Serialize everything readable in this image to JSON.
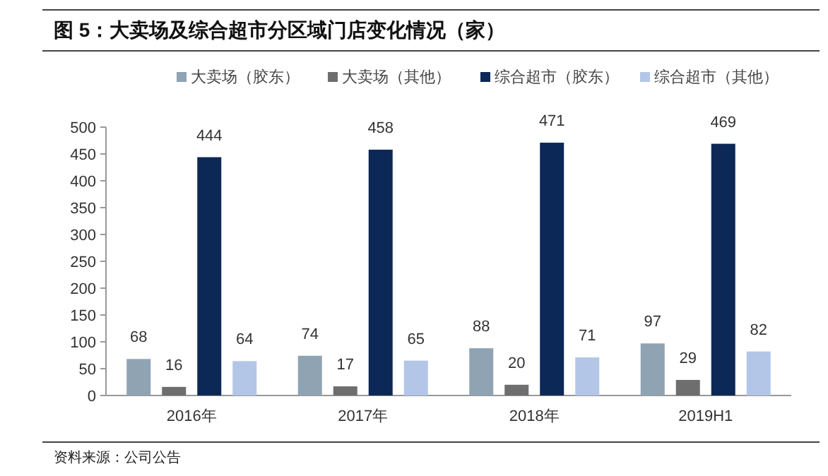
{
  "chart_data": {
    "type": "bar",
    "title": "图 5：大卖场及综合超市分区域门店变化情况（家）",
    "categories": [
      "2016年",
      "2017年",
      "2018年",
      "2019H1"
    ],
    "series": [
      {
        "name": "大卖场（胶东）",
        "color": "#8fa3b3",
        "values": [
          68,
          74,
          88,
          97
        ]
      },
      {
        "name": "大卖场（其他）",
        "color": "#6e6e6e",
        "values": [
          16,
          17,
          20,
          29
        ]
      },
      {
        "name": "综合超市（胶东）",
        "color": "#0c2857",
        "values": [
          444,
          458,
          471,
          469
        ]
      },
      {
        "name": "综合超市（其他）",
        "color": "#b3c6e8",
        "values": [
          64,
          65,
          71,
          82
        ]
      }
    ],
    "ylim": [
      0,
      500
    ],
    "yticks": [
      0,
      50,
      100,
      150,
      200,
      250,
      300,
      350,
      400,
      450,
      500
    ],
    "data_labels": true,
    "legend": "top",
    "grid": false,
    "annotations": [
      "资料来源：公司公告"
    ]
  }
}
